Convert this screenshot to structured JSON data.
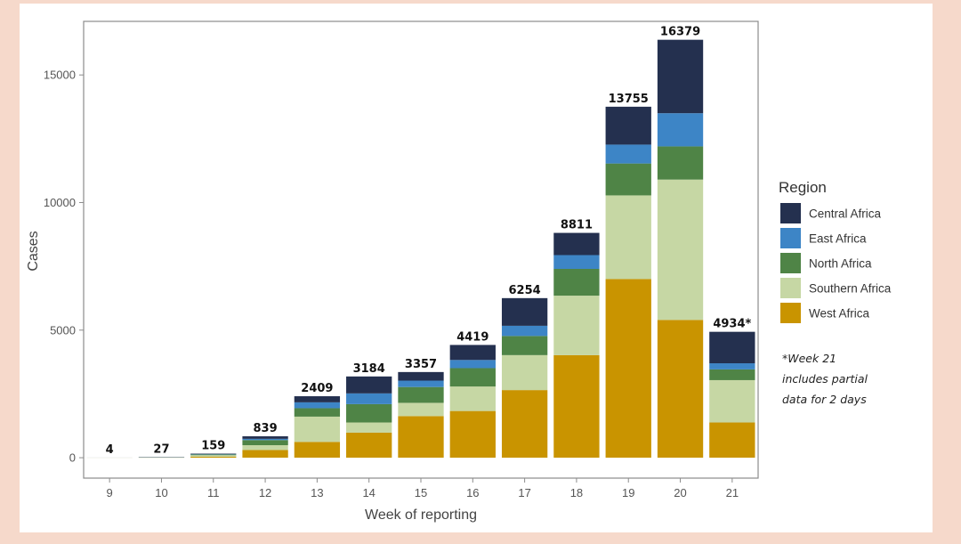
{
  "chart_data": {
    "type": "bar",
    "stacked": true,
    "xlabel": "Week of reporting",
    "ylabel": "Cases",
    "ylim": [
      -800,
      17100
    ],
    "yticks": [
      0,
      5000,
      10000,
      15000
    ],
    "categories": [
      "9",
      "10",
      "11",
      "12",
      "13",
      "14",
      "15",
      "16",
      "17",
      "18",
      "19",
      "20",
      "21"
    ],
    "totals_labels": [
      "4",
      "27",
      "159",
      "839",
      "2409",
      "3184",
      "3357",
      "4419",
      "6254",
      "8811",
      "13755",
      "16379",
      "4934*"
    ],
    "totals": [
      4,
      27,
      159,
      839,
      2409,
      3184,
      3357,
      4419,
      6254,
      8811,
      13755,
      16379,
      4934
    ],
    "legend_title": "Region",
    "legend_position": "right",
    "grid": false,
    "series": [
      {
        "name": "West Africa",
        "color": "#c99400",
        "values": [
          1,
          3,
          40,
          300,
          620,
          980,
          1630,
          1830,
          2650,
          4020,
          7000,
          5400,
          1380
        ]
      },
      {
        "name": "Southern Africa",
        "color": "#c6d7a4",
        "values": [
          1,
          5,
          60,
          190,
          990,
          400,
          520,
          960,
          1370,
          2330,
          3280,
          5500,
          1660
        ]
      },
      {
        "name": "North Africa",
        "color": "#4f8446",
        "values": [
          1,
          6,
          25,
          200,
          330,
          720,
          620,
          720,
          750,
          1050,
          1250,
          1300,
          420
        ]
      },
      {
        "name": "East Africa",
        "color": "#3d85c6",
        "values": [
          0,
          3,
          14,
          50,
          230,
          420,
          250,
          320,
          400,
          540,
          740,
          1300,
          240
        ]
      },
      {
        "name": "Central Africa",
        "color": "#24304f",
        "values": [
          1,
          10,
          20,
          99,
          239,
          664,
          337,
          589,
          1084,
          871,
          1485,
          2879,
          1234
        ]
      }
    ],
    "legend_order": [
      "Central Africa",
      "East Africa",
      "North Africa",
      "Southern Africa",
      "West Africa"
    ],
    "annotation": {
      "lines": [
        "*Week 21",
        "includes partial",
        "data for 2 days"
      ]
    }
  }
}
